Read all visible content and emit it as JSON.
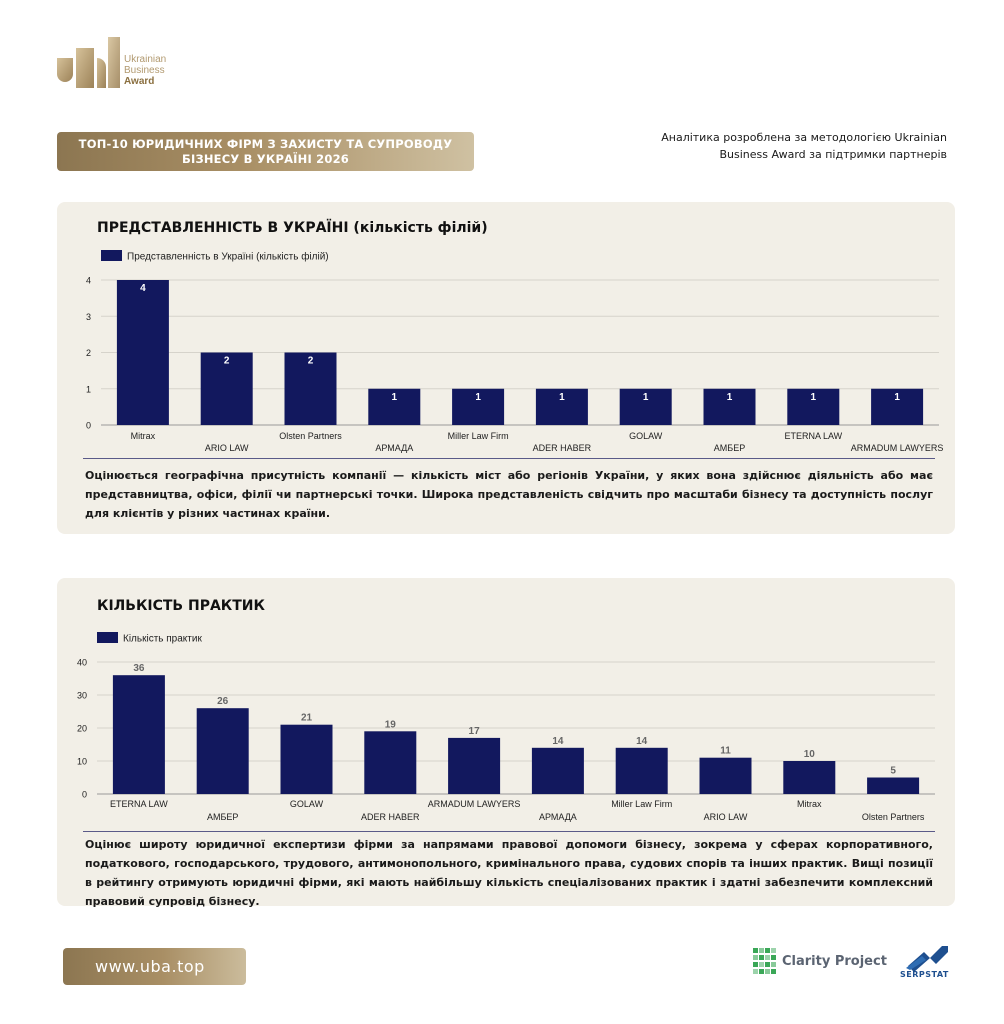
{
  "brand": {
    "logo_lines": [
      "Ukrainian",
      "Business",
      "Award"
    ],
    "gold": "#a98f65",
    "navy": "#12185e"
  },
  "header": {
    "title": "ТОП-10 ЮРИДИЧНИХ ФІРМ З ЗАХИСТУ ТА СУПРОВОДУ БІЗНЕСУ В УКРАЇНІ 2026",
    "methodology_line1": "Аналітика розроблена за методологією Ukrainian",
    "methodology_line2": "Business Award за підтримки партнерів"
  },
  "panels": [
    {
      "title": "ПРЕДСТАВЛЕННІСТЬ В УКРАЇНІ (кількість філій)",
      "description": "Оцінюється географічна присутність компанії — кількість міст або регіонів України, у яких вона здійснює діяльність або має представництва, офіси, філії чи партнерські точки. Широка представленість свідчить про масштаби бізнесу та доступність послуг для клієнтів у різних частинах країни."
    },
    {
      "title": "КІЛЬКІСТЬ ПРАКТИК",
      "description": "Оцінює широту юридичної експертизи фірми за напрямами правової допомоги бізнесу, зокрема у сферах корпоративного, податкового, господарського, трудового, антимонопольного, кримінального права, судових спорів та інших практик. Вищі позиції в рейтингу отримують юридичні фірми, які мають найбільшу кількість спеціалізованих практик і здатні забезпечити комплексний правовий супровід бізнесу."
    }
  ],
  "chart_data": [
    {
      "type": "bar",
      "title": "ПРЕДСТАВЛЕННІСТЬ В УКРАЇНІ (кількість філій)",
      "categories": [
        "Mitrax",
        "ARIO LAW",
        "Olsten Partners",
        "АРМАДА",
        "Miller Law Firm",
        "ADER HABER",
        "GOLAW",
        "АМБЕР",
        "ETERNA LAW",
        "ARMADUM LAWYERS"
      ],
      "series": [
        {
          "name": "Представленність в Україні (кількість філій)",
          "values": [
            4,
            2,
            2,
            1,
            1,
            1,
            1,
            1,
            1,
            1
          ],
          "color": "#12185e"
        }
      ],
      "yticks": [
        0,
        1,
        2,
        3,
        4
      ],
      "ylim": [
        0,
        4
      ],
      "legend": "top-left",
      "grid": true,
      "data_label_color": "#ffffff"
    },
    {
      "type": "bar",
      "title": "КІЛЬКІСТЬ ПРАКТИК",
      "categories": [
        "ETERNA LAW",
        "АМБЕР",
        "GOLAW",
        "ADER HABER",
        "ARMADUM LAWYERS",
        "АРМАДА",
        "Miller Law Firm",
        "ARIO LAW",
        "Mitrax",
        "Olsten Partners"
      ],
      "series": [
        {
          "name": "Кількість практик",
          "values": [
            36,
            26,
            21,
            19,
            17,
            14,
            14,
            11,
            10,
            5
          ],
          "color": "#12185e"
        }
      ],
      "yticks": [
        0,
        10,
        20,
        30,
        40
      ],
      "ylim": [
        0,
        40
      ],
      "legend": "top-left",
      "grid": true,
      "data_label_color": "#666666"
    }
  ],
  "footer": {
    "url": "www.uba.top",
    "partner1": "Clarity Project",
    "partner2": "SERPSTAT"
  }
}
